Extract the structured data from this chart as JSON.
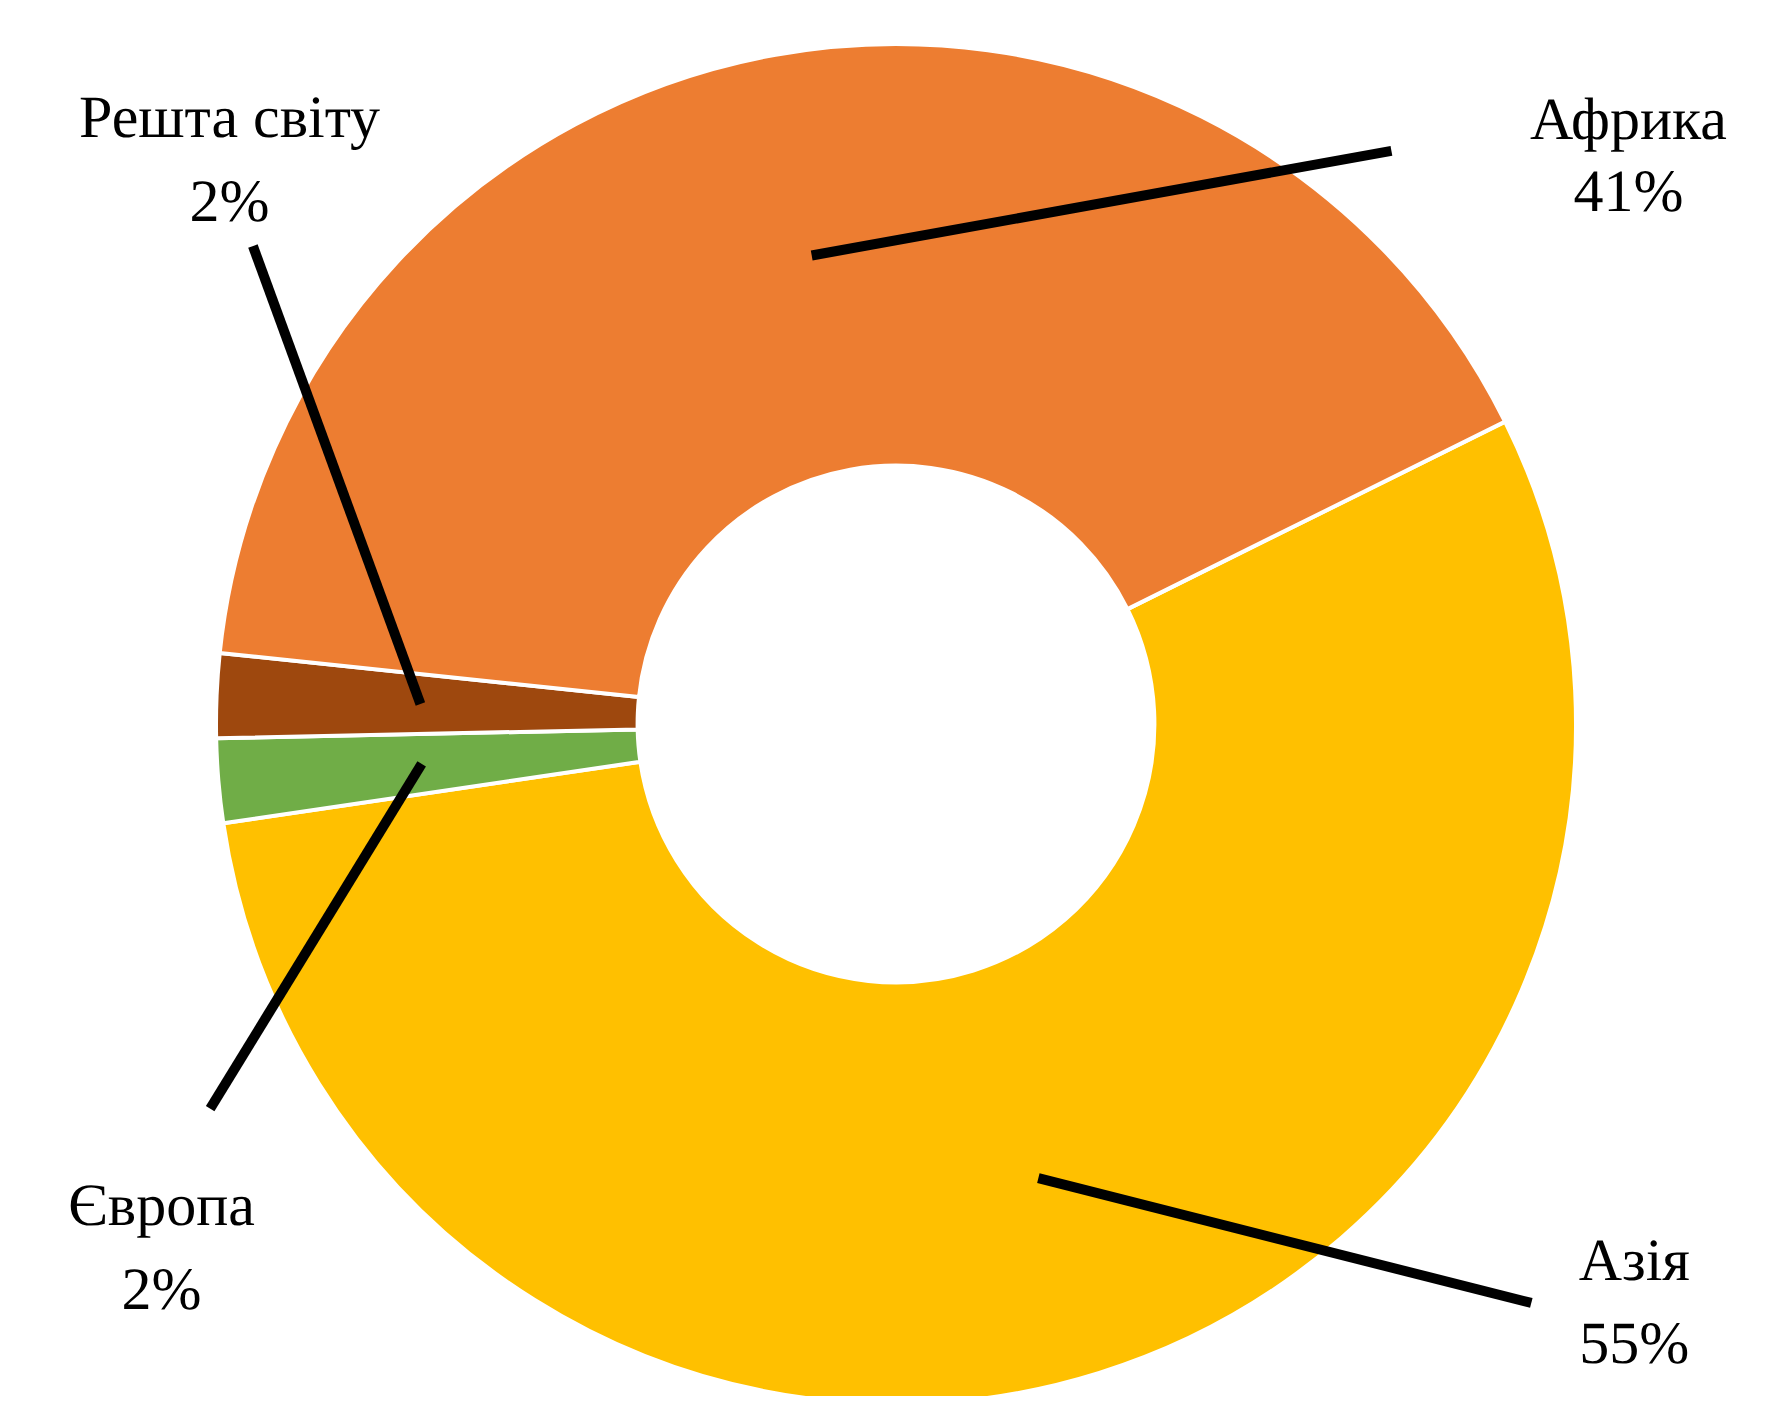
{
  "chart_data": {
    "type": "donut",
    "categories": [
      "Азія",
      "Європа",
      "Решта світу",
      "Африка"
    ],
    "values": [
      55,
      2,
      2,
      41
    ],
    "value_labels": [
      "55%",
      "2%",
      "2%",
      "41%"
    ],
    "colors": [
      "#ffc000",
      "#70ad47",
      "#9e480e",
      "#ed7d31"
    ],
    "legend": false
  }
}
